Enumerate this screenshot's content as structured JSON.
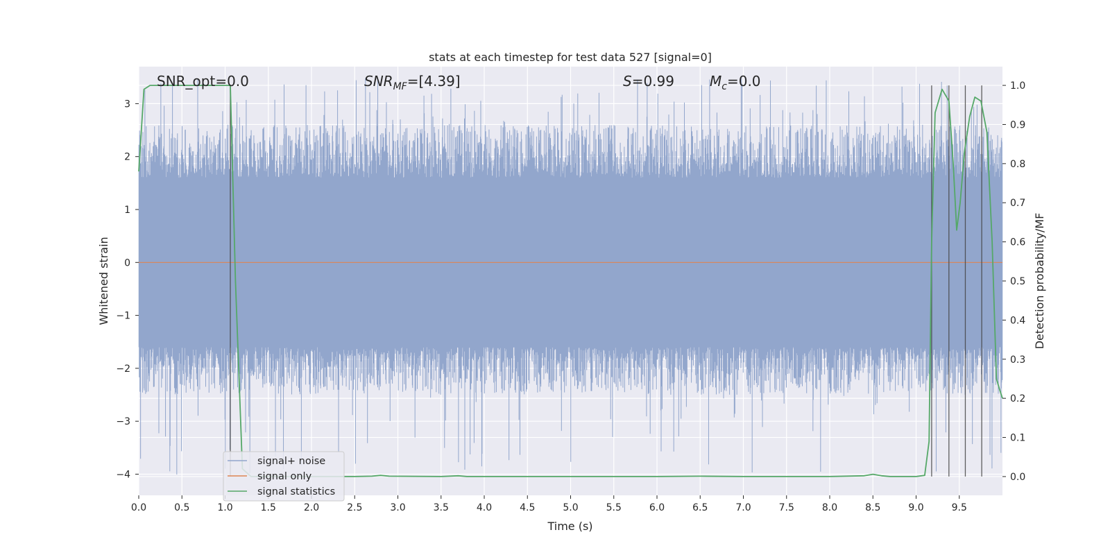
{
  "chart_data": {
    "type": "line",
    "title": "stats at each timestep for test data 527 [signal=0]",
    "xlabel": "Time (s)",
    "ylabel": "Whitened strain",
    "y2label": "Detection probability/MF",
    "xlim": [
      0.0,
      10.0
    ],
    "ylim": [
      -4.4,
      3.7
    ],
    "y2lim": [
      -0.048,
      1.048
    ],
    "x_ticks": [
      0.0,
      0.5,
      1.0,
      1.5,
      2.0,
      2.5,
      3.0,
      3.5,
      4.0,
      4.5,
      5.0,
      5.5,
      6.0,
      6.5,
      7.0,
      7.5,
      8.0,
      8.5,
      9.0,
      9.5
    ],
    "x_tick_labels": [
      "0.0",
      "0.5",
      "1.0",
      "1.5",
      "2.0",
      "2.5",
      "3.0",
      "3.5",
      "4.0",
      "4.5",
      "5.0",
      "5.5",
      "6.0",
      "6.5",
      "7.0",
      "7.5",
      "8.0",
      "8.5",
      "9.0",
      "9.5"
    ],
    "y_ticks": [
      -4,
      -3,
      -2,
      -1,
      0,
      1,
      2,
      3
    ],
    "y_tick_labels": [
      "−4",
      "−3",
      "−2",
      "−1",
      "0",
      "1",
      "2",
      "3"
    ],
    "y2_ticks": [
      0.0,
      0.1,
      0.2,
      0.3,
      0.4,
      0.5,
      0.6,
      0.7,
      0.8,
      0.9,
      1.0
    ],
    "y2_tick_labels": [
      "0.0",
      "0.1",
      "0.2",
      "0.3",
      "0.4",
      "0.5",
      "0.6",
      "0.7",
      "0.8",
      "0.9",
      "1.0"
    ],
    "grid": true,
    "legend_position": "bottom-left",
    "annotations": {
      "snr_opt": "SNR_opt=0.0",
      "snr_mf_sym": "SNR",
      "snr_mf_sub": "MF",
      "snr_mf_val": "=[4.39]",
      "s_sym": "S",
      "s_val": "=0.99",
      "mc_sym": "M",
      "mc_sub": "c",
      "mc_val": "=0.0"
    },
    "series": [
      {
        "name": "signal+ noise",
        "color": "#92a6cc",
        "kind": "noise",
        "envelope": {
          "core_low": -1.6,
          "core_high": 1.6,
          "typical_peak_high": 2.6,
          "typical_peak_low": -2.5,
          "extreme_high": 3.5,
          "extreme_low": -4.05
        }
      },
      {
        "name": "signal only",
        "color": "#dd8452",
        "x": [
          0.0,
          10.0
        ],
        "values": [
          0.0,
          0.0
        ]
      },
      {
        "name": "signal statistics",
        "color": "#55a868",
        "axis": "right",
        "x": [
          0.0,
          0.06,
          0.13,
          0.25,
          0.5,
          0.75,
          1.0,
          1.06,
          1.12,
          1.2,
          1.3,
          1.5,
          2.0,
          2.5,
          2.7,
          2.8,
          2.9,
          3.5,
          3.7,
          3.8,
          4.0,
          5.0,
          6.0,
          6.5,
          7.0,
          8.0,
          8.4,
          8.5,
          8.6,
          8.7,
          9.0,
          9.1,
          9.15,
          9.18,
          9.22,
          9.3,
          9.38,
          9.43,
          9.47,
          9.51,
          9.56,
          9.62,
          9.68,
          9.75,
          9.82,
          9.88,
          9.93,
          9.97,
          10.0
        ],
        "values": [
          0.78,
          0.99,
          1.0,
          1.0,
          1.0,
          1.0,
          1.0,
          1.0,
          0.5,
          0.02,
          0.0,
          0.0,
          0.0,
          0.0,
          0.001,
          0.003,
          0.001,
          0.0,
          0.002,
          0.0,
          0.0,
          0.0,
          0.0,
          0.001,
          0.0,
          0.0,
          0.002,
          0.006,
          0.002,
          0.0,
          0.0,
          0.003,
          0.09,
          0.6,
          0.93,
          0.99,
          0.96,
          0.8,
          0.63,
          0.7,
          0.83,
          0.92,
          0.97,
          0.96,
          0.88,
          0.6,
          0.25,
          0.22,
          0.2
        ]
      }
    ],
    "vertical_lines": [
      1.06,
      9.18,
      9.38,
      9.57,
      9.76
    ]
  }
}
